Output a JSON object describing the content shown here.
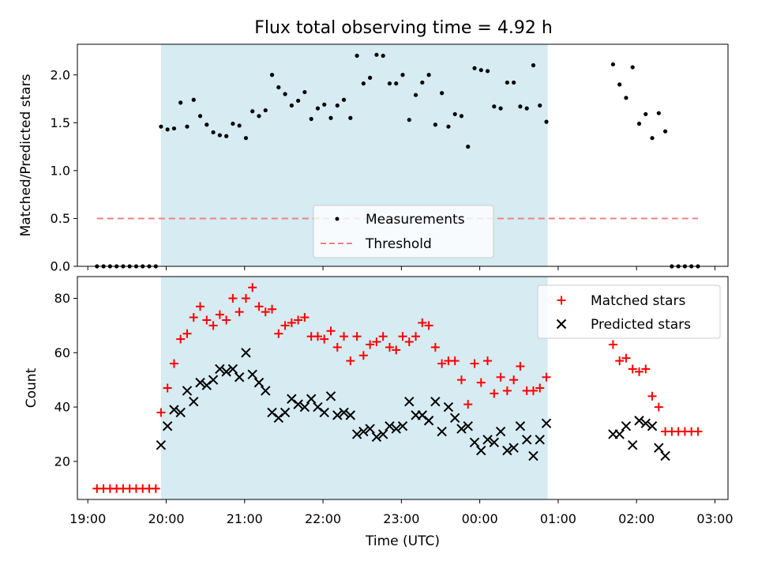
{
  "colors": {
    "background": "#ffffff",
    "observing_span": "#add8e6",
    "measurement": "#000000",
    "threshold": "#f08080",
    "matched": "#ff0000",
    "predicted": "#000000"
  },
  "chart_data": [
    {
      "type": "scatter",
      "title": "Flux total observing time = 4.92 h",
      "xlabel": "",
      "ylabel": "Matched/Predicted stars",
      "ylim": [
        0,
        2.32
      ],
      "yticks": [
        "0.0",
        "0.5",
        "1.0",
        "1.5",
        "2.0"
      ],
      "xlim": [
        "18:52",
        "03:10"
      ],
      "grid": false,
      "shaded_span": [
        "19:56",
        "00:52"
      ],
      "legend": {
        "placement": "lower-center",
        "entries": [
          "Measurements",
          "Threshold"
        ]
      },
      "threshold": {
        "name": "Threshold",
        "value": 0.5,
        "x": [
          "19:07",
          "02:47"
        ]
      },
      "series": [
        {
          "name": "Measurements",
          "x": [
            "19:07",
            "19:12",
            "19:17",
            "19:22",
            "19:27",
            "19:32",
            "19:37",
            "19:42",
            "19:47",
            "19:52",
            "19:56",
            "20:01",
            "20:06",
            "20:11",
            "20:16",
            "20:21",
            "20:26",
            "20:31",
            "20:36",
            "20:41",
            "20:46",
            "20:51",
            "20:56",
            "21:01",
            "21:06",
            "21:11",
            "21:16",
            "21:21",
            "21:26",
            "21:31",
            "21:36",
            "21:41",
            "21:46",
            "21:51",
            "21:56",
            "22:01",
            "22:06",
            "22:11",
            "22:16",
            "22:21",
            "22:26",
            "22:31",
            "22:36",
            "22:41",
            "22:46",
            "22:51",
            "22:56",
            "23:01",
            "23:06",
            "23:11",
            "23:16",
            "23:21",
            "23:26",
            "23:31",
            "23:36",
            "23:41",
            "23:46",
            "23:51",
            "23:56",
            "00:01",
            "00:06",
            "00:11",
            "00:16",
            "00:21",
            "00:26",
            "00:31",
            "00:36",
            "00:41",
            "00:46",
            "00:51",
            "01:42",
            "01:47",
            "01:52",
            "01:57",
            "02:02",
            "02:07",
            "02:12",
            "02:17",
            "02:22",
            "02:27",
            "02:32",
            "02:37",
            "02:42",
            "02:47"
          ],
          "y": [
            0,
            0,
            0,
            0,
            0,
            0,
            0,
            0,
            0,
            0,
            1.46,
            1.43,
            1.44,
            1.71,
            1.46,
            1.74,
            1.57,
            1.48,
            1.4,
            1.37,
            1.36,
            1.49,
            1.47,
            1.34,
            1.62,
            1.57,
            1.63,
            2.0,
            1.87,
            1.8,
            1.68,
            1.73,
            1.82,
            1.54,
            1.65,
            1.69,
            1.55,
            1.68,
            1.74,
            1.55,
            2.2,
            1.91,
            1.97,
            2.21,
            2.2,
            1.91,
            1.91,
            2.0,
            1.53,
            1.79,
            1.92,
            2.0,
            1.48,
            1.81,
            1.46,
            1.59,
            1.57,
            1.25,
            2.07,
            2.05,
            2.04,
            1.67,
            1.65,
            1.92,
            1.92,
            1.67,
            1.65,
            2.1,
            1.68,
            1.51,
            2.11,
            1.9,
            1.76,
            2.08,
            1.49,
            1.59,
            1.34,
            1.6,
            1.41,
            0,
            0,
            0,
            0,
            0
          ]
        }
      ]
    },
    {
      "type": "scatter",
      "title": "",
      "xlabel": "Time (UTC)",
      "ylabel": "Count",
      "ylim": [
        6,
        88
      ],
      "yticks": [
        "20",
        "40",
        "60",
        "80"
      ],
      "xticks": [
        "19:00",
        "20:00",
        "21:00",
        "22:00",
        "23:00",
        "00:00",
        "01:00",
        "02:00",
        "03:00"
      ],
      "xlim": [
        "18:52",
        "03:10"
      ],
      "grid": false,
      "shaded_span": [
        "19:56",
        "00:52"
      ],
      "legend": {
        "placement": "top-right",
        "entries": [
          "Matched stars",
          "Predicted stars"
        ]
      },
      "series": [
        {
          "name": "Matched stars",
          "marker": "plus",
          "x": [
            "19:07",
            "19:12",
            "19:17",
            "19:22",
            "19:27",
            "19:32",
            "19:37",
            "19:42",
            "19:47",
            "19:52",
            "19:56",
            "20:01",
            "20:06",
            "20:11",
            "20:16",
            "20:21",
            "20:26",
            "20:31",
            "20:36",
            "20:41",
            "20:46",
            "20:51",
            "20:56",
            "21:01",
            "21:06",
            "21:11",
            "21:16",
            "21:21",
            "21:26",
            "21:31",
            "21:36",
            "21:41",
            "21:46",
            "21:51",
            "21:56",
            "22:01",
            "22:06",
            "22:11",
            "22:16",
            "22:21",
            "22:26",
            "22:31",
            "22:36",
            "22:41",
            "22:46",
            "22:51",
            "22:56",
            "23:01",
            "23:06",
            "23:11",
            "23:16",
            "23:21",
            "23:26",
            "23:31",
            "23:36",
            "23:41",
            "23:46",
            "23:51",
            "23:56",
            "00:01",
            "00:06",
            "00:11",
            "00:16",
            "00:21",
            "00:26",
            "00:31",
            "00:36",
            "00:41",
            "00:46",
            "00:51",
            "01:42",
            "01:47",
            "01:52",
            "01:57",
            "02:02",
            "02:07",
            "02:12",
            "02:17",
            "02:22",
            "02:27",
            "02:32",
            "02:37",
            "02:42",
            "02:47"
          ],
          "y": [
            10,
            10,
            10,
            10,
            10,
            10,
            10,
            10,
            10,
            10,
            38,
            47,
            56,
            65,
            67,
            73,
            77,
            72,
            70,
            74,
            72,
            80,
            75,
            80,
            84,
            77,
            75,
            76,
            67,
            70,
            71,
            72,
            73,
            66,
            66,
            65,
            68,
            62,
            66,
            57,
            66,
            59,
            63,
            64,
            66,
            62,
            61,
            66,
            64,
            66,
            71,
            70,
            62,
            56,
            57,
            57,
            50,
            41,
            56,
            49,
            57,
            45,
            51,
            46,
            50,
            55,
            46,
            46,
            47,
            51,
            63,
            57,
            58,
            54,
            53,
            54,
            44,
            40,
            31,
            31,
            31,
            31,
            31,
            31
          ]
        },
        {
          "name": "Predicted stars",
          "marker": "x",
          "x": [
            "19:56",
            "20:01",
            "20:06",
            "20:11",
            "20:16",
            "20:21",
            "20:26",
            "20:31",
            "20:36",
            "20:41",
            "20:46",
            "20:51",
            "20:56",
            "21:01",
            "21:06",
            "21:11",
            "21:16",
            "21:21",
            "21:26",
            "21:31",
            "21:36",
            "21:41",
            "21:46",
            "21:51",
            "21:56",
            "22:01",
            "22:06",
            "22:11",
            "22:16",
            "22:21",
            "22:26",
            "22:31",
            "22:36",
            "22:41",
            "22:46",
            "22:51",
            "22:56",
            "23:01",
            "23:06",
            "23:11",
            "23:16",
            "23:21",
            "23:26",
            "23:31",
            "23:36",
            "23:41",
            "23:46",
            "23:51",
            "23:56",
            "00:01",
            "00:06",
            "00:11",
            "00:16",
            "00:21",
            "00:26",
            "00:31",
            "00:36",
            "00:41",
            "00:46",
            "00:51",
            "01:42",
            "01:47",
            "01:52",
            "01:57",
            "02:02",
            "02:07",
            "02:12",
            "02:17",
            "02:22"
          ],
          "y": [
            26,
            33,
            39,
            38,
            46,
            42,
            49,
            48,
            50,
            54,
            53,
            54,
            51,
            60,
            52,
            49,
            46,
            38,
            36,
            38,
            43,
            41,
            40,
            43,
            40,
            38,
            44,
            37,
            38,
            37,
            30,
            31,
            32,
            29,
            30,
            33,
            32,
            33,
            42,
            37,
            37,
            35,
            42,
            31,
            40,
            36,
            32,
            33,
            27,
            24,
            28,
            27,
            31,
            24,
            25,
            33,
            28,
            22,
            28,
            34,
            30,
            30,
            33,
            26,
            35,
            34,
            33,
            25,
            22
          ]
        }
      ]
    }
  ]
}
